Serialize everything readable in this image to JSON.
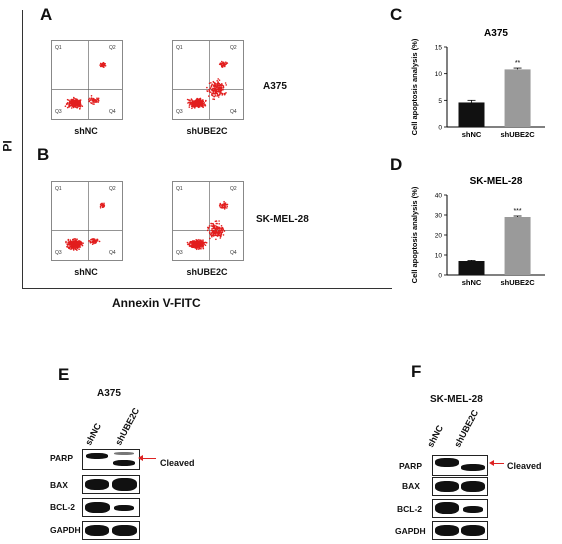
{
  "panels": {
    "A": "A",
    "B": "B",
    "C": "C",
    "D": "D",
    "E": "E",
    "F": "F"
  },
  "flow": {
    "y_axis_label": "PI",
    "x_axis_label": "Annexin V-FITC",
    "quadrants": [
      "Q1",
      "Q2",
      "Q3",
      "Q4"
    ],
    "row_A_cell": "A375",
    "row_B_cell": "SK-MEL-28",
    "captions": [
      "shNC",
      "shUBE2C"
    ]
  },
  "chart_data": [
    {
      "type": "bar",
      "title": "A375",
      "categories": [
        "shNC",
        "shUBE2C"
      ],
      "values": [
        4.6,
        10.8
      ],
      "errors": [
        0.4,
        0.25
      ],
      "ylabel": "Cell apoptosis analysis (%)",
      "ylim": [
        0,
        15
      ],
      "yticks": [
        0,
        5,
        10,
        15
      ],
      "significance": [
        "",
        "**"
      ],
      "colors": [
        "#111111",
        "#9a9a9a"
      ]
    },
    {
      "type": "bar",
      "title": "SK-MEL-28",
      "categories": [
        "shNC",
        "shUBE2C"
      ],
      "values": [
        7,
        29
      ],
      "errors": [
        0.3,
        0.5
      ],
      "ylabel": "Cell apoptosis analysis (%)",
      "ylim": [
        0,
        40
      ],
      "yticks": [
        0,
        10,
        20,
        30,
        40
      ],
      "significance": [
        "",
        "***"
      ],
      "colors": [
        "#111111",
        "#9a9a9a"
      ]
    }
  ],
  "blotE": {
    "cell": "A375",
    "lanes": [
      "shNC",
      "shUBE2C"
    ],
    "proteins": [
      "PARP",
      "BAX",
      "BCL-2",
      "GAPDH"
    ],
    "cleaved": "Cleaved"
  },
  "blotF": {
    "cell": "SK-MEL-28",
    "lanes": [
      "shNC",
      "shUBE2C"
    ],
    "proteins": [
      "PARP",
      "BAX",
      "BCL-2",
      "GAPDH"
    ],
    "cleaved": "Cleaved"
  }
}
